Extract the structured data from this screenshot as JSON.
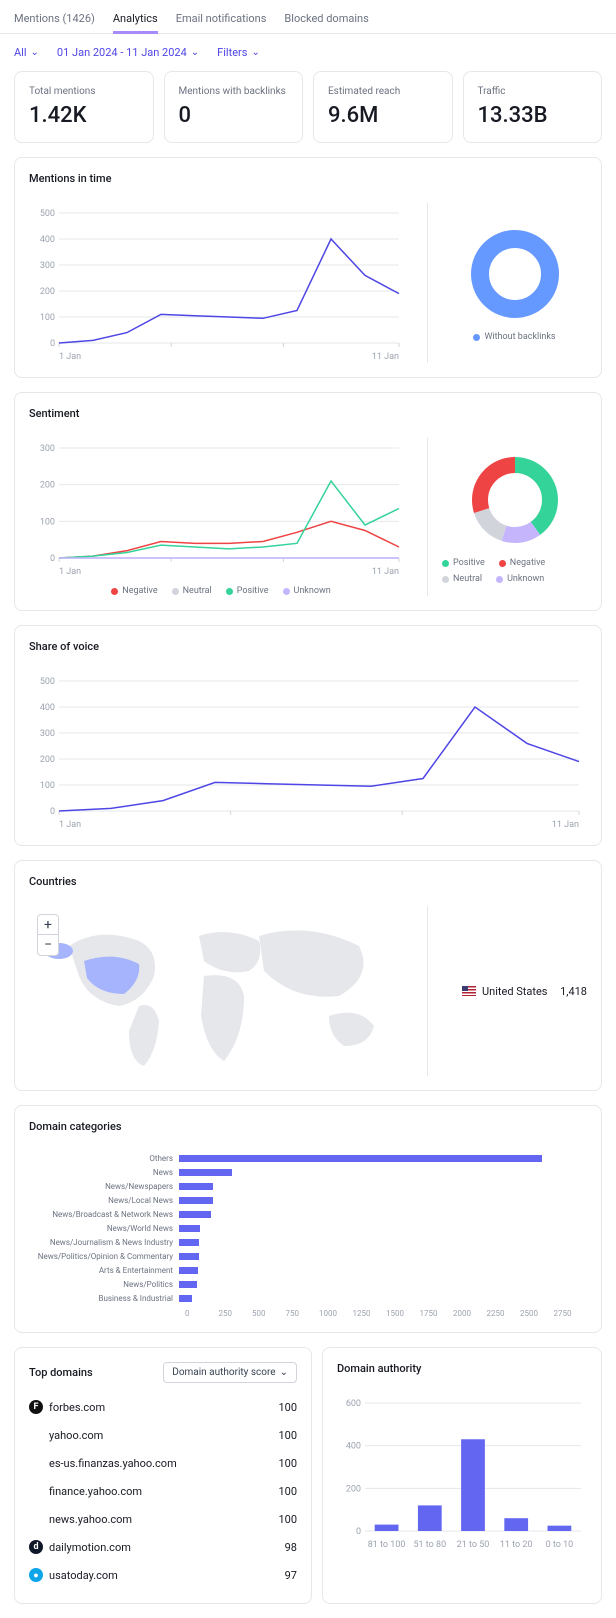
{
  "tabs": {
    "mentions": "Mentions (1426)",
    "analytics": "Analytics",
    "email": "Email notifications",
    "blocked": "Blocked domains"
  },
  "filters": {
    "all": "All",
    "date": "01 Jan 2024 - 11 Jan 2024",
    "filters": "Filters"
  },
  "kpis": [
    {
      "label": "Total mentions",
      "value": "1.42K"
    },
    {
      "label": "Mentions with backlinks",
      "value": "0"
    },
    {
      "label": "Estimated reach",
      "value": "9.6M"
    },
    {
      "label": "Traffic",
      "value": "13.33B"
    }
  ],
  "mentions_chart": {
    "title": "Mentions in time",
    "yticks": [
      0,
      100,
      200,
      300,
      400,
      500
    ],
    "xstart": "1 Jan",
    "xend": "11 Jan",
    "line_color": "#4f46e5",
    "data": [
      0,
      10,
      40,
      110,
      105,
      100,
      95,
      125,
      400,
      260,
      190
    ],
    "donut_color": "#6699ff",
    "donut_label": "Without backlinks"
  },
  "sentiment_chart": {
    "title": "Sentiment",
    "yticks": [
      0,
      100,
      200,
      300
    ],
    "xstart": "1 Jan",
    "xend": "11 Jan",
    "series": {
      "negative": {
        "color": "#ef4444",
        "data": [
          0,
          5,
          20,
          45,
          40,
          40,
          45,
          70,
          100,
          75,
          30
        ],
        "label": "Negative"
      },
      "neutral": {
        "color": "#d1d5db",
        "data": [
          0,
          0,
          0,
          0,
          0,
          0,
          0,
          0,
          0,
          0,
          0
        ],
        "label": "Neutral"
      },
      "positive": {
        "color": "#34d399",
        "data": [
          0,
          5,
          15,
          35,
          30,
          25,
          30,
          40,
          210,
          90,
          135
        ],
        "label": "Positive"
      },
      "unknown": {
        "color": "#c4b5fd",
        "data": [
          0,
          0,
          0,
          0,
          0,
          0,
          0,
          0,
          0,
          0,
          0
        ],
        "label": "Unknown"
      }
    },
    "donut": {
      "positive": {
        "pct": 40,
        "color": "#34d399"
      },
      "negative": {
        "pct": 30,
        "color": "#ef4444"
      },
      "neutral": {
        "pct": 15,
        "color": "#d1d5db"
      },
      "unknown": {
        "pct": 15,
        "color": "#c4b5fd"
      }
    }
  },
  "voice_chart": {
    "title": "Share of voice",
    "yticks": [
      0,
      100,
      200,
      300,
      400,
      500
    ],
    "xstart": "1 Jan",
    "xend": "11 Jan",
    "line_color": "#4f46e5",
    "data": [
      0,
      10,
      40,
      110,
      105,
      100,
      95,
      125,
      400,
      260,
      190
    ]
  },
  "countries": {
    "title": "Countries",
    "row": {
      "name": "United States",
      "count": "1,418"
    }
  },
  "categories": {
    "title": "Domain categories",
    "max": 2750,
    "ticks": [
      0,
      250,
      500,
      750,
      1000,
      1250,
      1500,
      1750,
      2000,
      2250,
      2500,
      2750
    ],
    "rows": [
      {
        "label": "Others",
        "value": 2450
      },
      {
        "label": "News",
        "value": 360
      },
      {
        "label": "News/Newspapers",
        "value": 230
      },
      {
        "label": "News/Local News",
        "value": 230
      },
      {
        "label": "News/Broadcast & Network News",
        "value": 215
      },
      {
        "label": "News/World News",
        "value": 140
      },
      {
        "label": "News/Journalism & News Industry",
        "value": 135
      },
      {
        "label": "News/Politics/Opinion & Commentary",
        "value": 135
      },
      {
        "label": "Arts & Entertainment",
        "value": 130
      },
      {
        "label": "News/Politics",
        "value": 120
      },
      {
        "label": "Business & Industrial",
        "value": 90
      }
    ],
    "bar_color": "#6366f1"
  },
  "top_domains": {
    "title": "Top domains",
    "sort_label": "Domain authority score",
    "rows": [
      {
        "icon": "F",
        "icon_bg": "#111",
        "name": "forbes.com",
        "score": 100
      },
      {
        "icon": "",
        "name": "yahoo.com",
        "score": 100
      },
      {
        "icon": "",
        "name": "es-us.finanzas.yahoo.com",
        "score": 100
      },
      {
        "icon": "",
        "name": "finance.yahoo.com",
        "score": 100
      },
      {
        "icon": "",
        "name": "news.yahoo.com",
        "score": 100
      },
      {
        "icon": "d",
        "icon_bg": "#0f172a",
        "name": "dailymotion.com",
        "score": 98
      },
      {
        "icon": "●",
        "icon_bg": "#0ea5e9",
        "name": "usatoday.com",
        "score": 97
      }
    ]
  },
  "authority": {
    "title": "Domain authority",
    "yticks": [
      0,
      200,
      400,
      600
    ],
    "bars": [
      {
        "label": "81 to 100",
        "value": 30
      },
      {
        "label": "51 to 80",
        "value": 120
      },
      {
        "label": "21 to 50",
        "value": 430
      },
      {
        "label": "11 to 20",
        "value": 60
      },
      {
        "label": "0 to 10",
        "value": 25
      }
    ],
    "bar_color": "#6366f1"
  }
}
